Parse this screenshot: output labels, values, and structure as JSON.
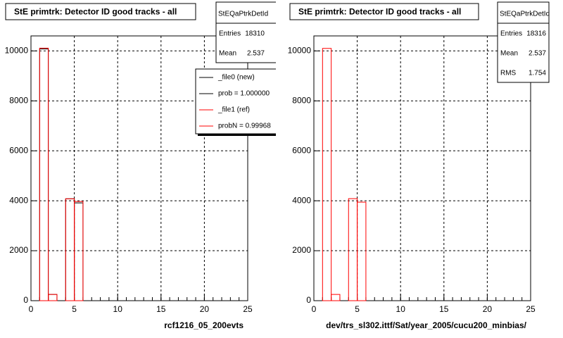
{
  "chart_data": [
    {
      "type": "histogram",
      "title": "StE primtrk: Detector ID good tracks - all",
      "x_label": "rcf1216_05_200evts",
      "bins": [
        0,
        1,
        2,
        3,
        4,
        5,
        6,
        7,
        8,
        9,
        10,
        11,
        12,
        13,
        14,
        15,
        16,
        17,
        18,
        19,
        20,
        21,
        22,
        23,
        24,
        25
      ],
      "series": [
        {
          "color": "#000000",
          "values": [
            0,
            10080,
            250,
            0,
            4080,
            3915,
            0,
            0,
            0,
            0,
            0,
            0,
            0,
            0,
            0,
            0,
            0,
            0,
            0,
            0,
            0,
            0,
            0,
            0,
            0
          ]
        },
        {
          "color": "#ff0000",
          "values": [
            0,
            10110,
            250,
            0,
            4080,
            3970,
            0,
            0,
            0,
            0,
            0,
            0,
            0,
            0,
            0,
            0,
            0,
            0,
            0,
            0,
            0,
            0,
            0,
            0,
            0
          ]
        }
      ],
      "xlim": [
        0,
        25
      ],
      "xticks": [
        0,
        5,
        10,
        15,
        20,
        25
      ],
      "ylim": [
        0,
        10600
      ],
      "yticks": [
        0,
        2000,
        4000,
        6000,
        8000,
        10000
      ],
      "grid": true,
      "stats": {
        "title": "StEQaPtrkDetId",
        "rows": [
          {
            "label": "Entries",
            "value": 18310
          },
          {
            "label": "Mean",
            "value": 2.537
          }
        ]
      },
      "legend": [
        {
          "label": "_file0 (new)",
          "color": "#000000"
        },
        {
          "label": "prob = 1.000000",
          "color": "#000000"
        },
        {
          "label": "_file1 (ref)",
          "color": "#ff0000"
        },
        {
          "label": "probN = 0.99968",
          "color": "#ff0000"
        }
      ]
    },
    {
      "type": "histogram",
      "title": "StE primtrk: Detector ID good tracks - all",
      "x_label": "dev/trs_sl302.ittf/Sat/year_2005/cucu200_minbias/",
      "bins": [
        0,
        1,
        2,
        3,
        4,
        5,
        6,
        7,
        8,
        9,
        10,
        11,
        12,
        13,
        14,
        15,
        16,
        17,
        18,
        19,
        20,
        21,
        22,
        23,
        24,
        25
      ],
      "series": [
        {
          "color": "#ff0000",
          "values": [
            0,
            10100,
            250,
            0,
            4085,
            3945,
            0,
            0,
            0,
            0,
            0,
            0,
            0,
            0,
            0,
            0,
            0,
            0,
            0,
            0,
            0,
            0,
            0,
            0,
            0
          ]
        }
      ],
      "xlim": [
        0,
        25
      ],
      "xticks": [
        0,
        5,
        10,
        15,
        20,
        25
      ],
      "ylim": [
        0,
        10600
      ],
      "yticks": [
        0,
        2000,
        4000,
        6000,
        8000,
        10000
      ],
      "grid": true,
      "stats": {
        "title": "StEQaPtrkDetId",
        "rows": [
          {
            "label": "Entries",
            "value": 18316
          },
          {
            "label": "Mean",
            "value": 2.537
          },
          {
            "label": "RMS",
            "value": 1.754
          }
        ]
      }
    }
  ]
}
